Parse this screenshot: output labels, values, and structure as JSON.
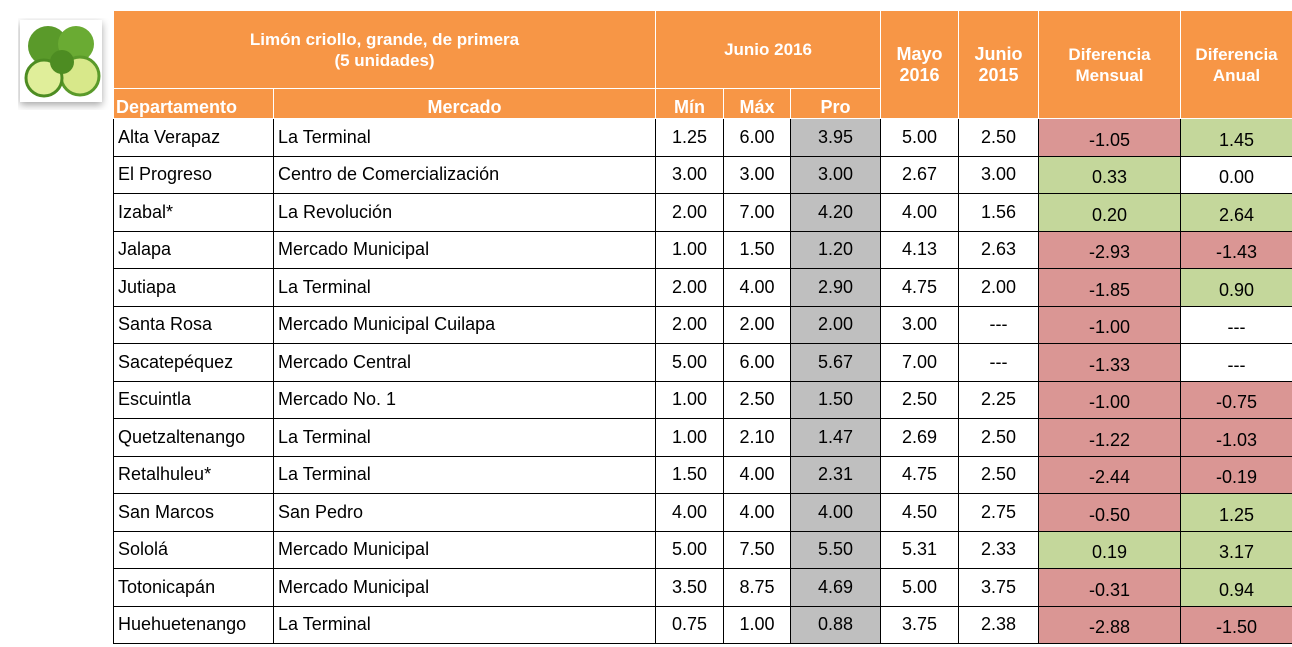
{
  "header": {
    "title": "Limón criollo, grande, de primera",
    "subtitle": "(5 unidades)",
    "group": "Junio 2016",
    "columns": [
      "Departamento",
      "Mercado",
      "Mín",
      "Máx",
      "Pro"
    ],
    "side_columns": [
      "Mayo 2016",
      "Junio 2015",
      "Diferencia Mensual",
      "Diferencia Anual"
    ]
  },
  "colors": {
    "header": "#f79646",
    "pro": "#bfbfbf",
    "negative": "#da9694",
    "positive": "#c4d79b"
  },
  "table": {
    "rows": [
      [
        "Alta Verapaz",
        "La Terminal",
        "1.25",
        "6.00",
        "3.95",
        "5.00",
        "2.50",
        "-1.05",
        "1.45"
      ],
      [
        "El Progreso",
        "Centro de Comercialización",
        "3.00",
        "3.00",
        "3.00",
        "2.67",
        "3.00",
        "0.33",
        "0.00"
      ],
      [
        "Izabal*",
        "La Revolución",
        "2.00",
        "7.00",
        "4.20",
        "4.00",
        "1.56",
        "0.20",
        "2.64"
      ],
      [
        "Jalapa",
        "Mercado Municipal",
        "1.00",
        "1.50",
        "1.20",
        "4.13",
        "2.63",
        "-2.93",
        "-1.43"
      ],
      [
        "Jutiapa",
        "La Terminal",
        "2.00",
        "4.00",
        "2.90",
        "4.75",
        "2.00",
        "-1.85",
        "0.90"
      ],
      [
        "Santa Rosa",
        "Mercado Municipal Cuilapa",
        "2.00",
        "2.00",
        "2.00",
        "3.00",
        "---",
        "-1.00",
        "---"
      ],
      [
        "Sacatepéquez",
        "Mercado Central",
        "5.00",
        "6.00",
        "5.67",
        "7.00",
        "---",
        "-1.33",
        "---"
      ],
      [
        "Escuintla",
        "Mercado No. 1",
        "1.00",
        "2.50",
        "1.50",
        "2.50",
        "2.25",
        "-1.00",
        "-0.75"
      ],
      [
        "Quetzaltenango",
        "La Terminal",
        "1.00",
        "2.10",
        "1.47",
        "2.69",
        "2.50",
        "-1.22",
        "-1.03"
      ],
      [
        "Retalhuleu*",
        "La Terminal",
        "1.50",
        "4.00",
        "2.31",
        "4.75",
        "2.50",
        "-2.44",
        "-0.19"
      ],
      [
        "San Marcos",
        "San Pedro",
        "4.00",
        "4.00",
        "4.00",
        "4.50",
        "2.75",
        "-0.50",
        "1.25"
      ],
      [
        "Sololá",
        "Mercado Municipal",
        "5.00",
        "7.50",
        "5.50",
        "5.31",
        "2.33",
        "0.19",
        "3.17"
      ],
      [
        "Totonicapán",
        "Mercado Municipal",
        "3.50",
        "8.75",
        "4.69",
        "5.00",
        "3.75",
        "-0.31",
        "0.94"
      ],
      [
        "Huehuetenango",
        "La Terminal",
        "0.75",
        "1.00",
        "0.88",
        "3.75",
        "2.38",
        "-2.88",
        "-1.50"
      ]
    ]
  }
}
